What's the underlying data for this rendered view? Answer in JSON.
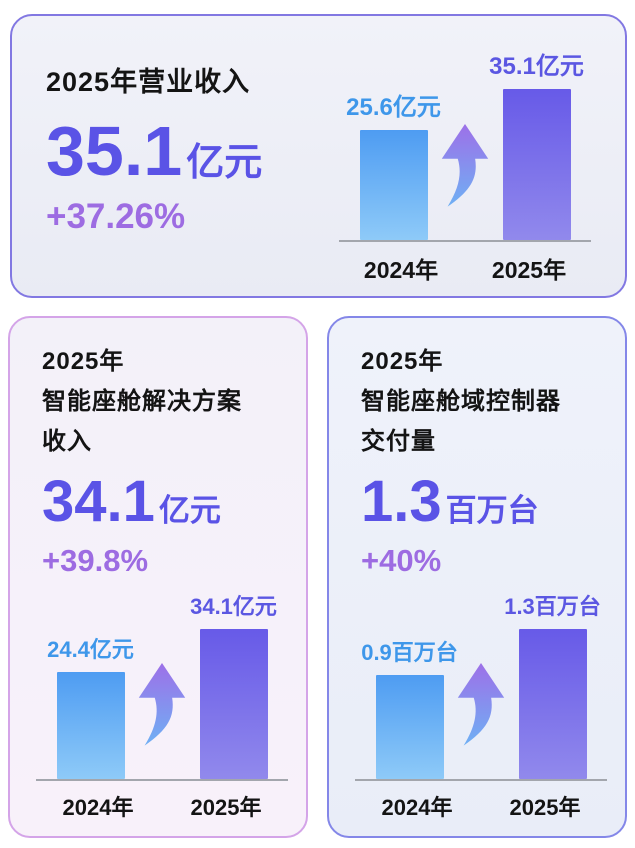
{
  "cards": {
    "revenue": {
      "title": "2025年营业收入",
      "value": "35.1",
      "unit": "亿元",
      "growth": "+37.26%"
    },
    "cockpit_revenue": {
      "title_lines": [
        "2025年",
        "智能座舱解决方案",
        "收入"
      ],
      "value": "34.1",
      "unit": "亿元",
      "growth": "+39.8%"
    },
    "controller_delivery": {
      "title_lines": [
        "2025年",
        "智能座舱域控制器",
        "交付量"
      ],
      "value": "1.3",
      "unit": "百万台",
      "growth": "+40%"
    }
  },
  "chart_data": [
    {
      "type": "bar",
      "title": "2025年营业收入",
      "categories": [
        "2024年",
        "2025年"
      ],
      "values": [
        25.6,
        35.1
      ],
      "value_labels": [
        "25.6亿元",
        "35.1亿元"
      ],
      "unit": "亿元",
      "ylim": [
        0,
        35.1
      ],
      "grid": false,
      "legend": false,
      "bar_colors": [
        "blue-gradient",
        "purple-gradient"
      ],
      "annotation": "growth-arrow-between-bars"
    },
    {
      "type": "bar",
      "title": "2025年智能座舱解决方案收入",
      "categories": [
        "2024年",
        "2025年"
      ],
      "values": [
        24.4,
        34.1
      ],
      "value_labels": [
        "24.4亿元",
        "34.1亿元"
      ],
      "unit": "亿元",
      "ylim": [
        0,
        34.1
      ],
      "grid": false,
      "legend": false,
      "bar_colors": [
        "blue-gradient",
        "purple-gradient"
      ],
      "annotation": "growth-arrow-between-bars"
    },
    {
      "type": "bar",
      "title": "2025年智能座舱域控制器交付量",
      "categories": [
        "2024年",
        "2025年"
      ],
      "values": [
        0.9,
        1.3
      ],
      "value_labels": [
        "0.9百万台",
        "1.3百万台"
      ],
      "unit": "百万台",
      "ylim": [
        0,
        1.3
      ],
      "grid": false,
      "legend": false,
      "bar_colors": [
        "blue-gradient",
        "purple-gradient"
      ],
      "annotation": "growth-arrow-between-bars"
    }
  ],
  "colors": {
    "number": "#5a53e6",
    "growth": "#9d6ce2",
    "blue_bar_top": "#4e9cf2",
    "blue_bar_bottom": "#8ecaf8",
    "purple_bar_top": "#675ae8",
    "purple_bar_bottom": "#9189ec",
    "label_blue": "#3e97ea",
    "label_purple": "#5b57e2",
    "axis": "#a3a6ad",
    "card1_border": "#8278e2",
    "card2_border": "#d4a4e8",
    "card3_border": "#8487e8",
    "arrow_top": "#9d70e8",
    "arrow_bottom": "#6fb0f4"
  }
}
